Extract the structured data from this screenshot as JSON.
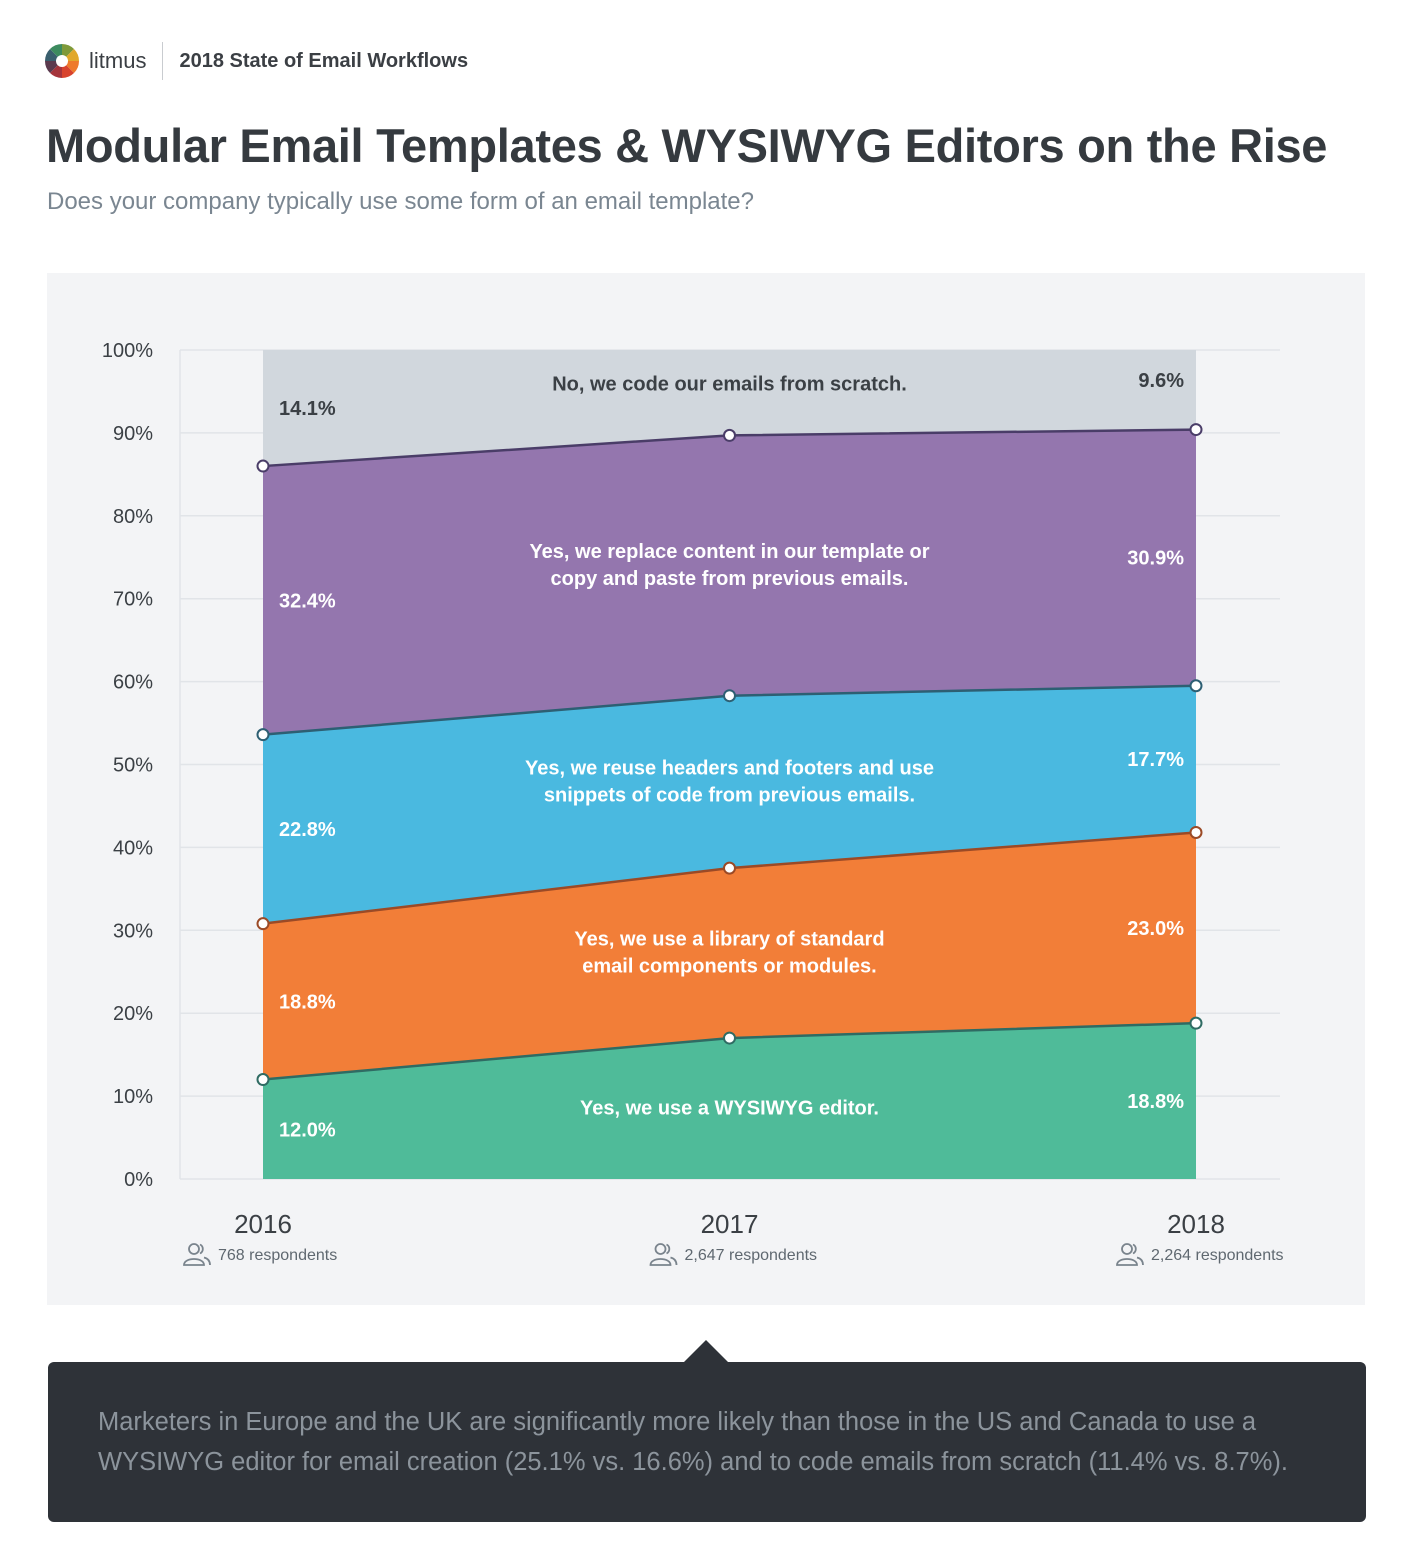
{
  "header": {
    "brand_name": "litmus",
    "report_name": "2018 State of Email Workflows",
    "title": "Modular Email Templates & WYSIWYG Editors on the Rise",
    "subtitle": "Does your company typically use some form of an email template?"
  },
  "chart_data": {
    "type": "area",
    "stacked": true,
    "ylim": [
      0,
      100
    ],
    "yticks": [
      "0%",
      "10%",
      "20%",
      "30%",
      "40%",
      "50%",
      "60%",
      "70%",
      "80%",
      "90%",
      "100%"
    ],
    "grid": true,
    "x": [
      "2016",
      "2017",
      "2018"
    ],
    "respondents": [
      "768 respondents",
      "2,647 respondents",
      "2,264 respondents"
    ],
    "series": [
      {
        "name": "Yes, we use a WYSIWYG editor.",
        "label_lines": [
          "Yes, we use a WYSIWYG editor."
        ],
        "values": [
          12.0,
          17.0,
          18.8
        ],
        "start_label": "12.0%",
        "end_label": "18.8%",
        "color": "#4fbb99",
        "line_color": "#2f6b63"
      },
      {
        "name": "Yes, we use a library of standard email components or modules.",
        "label_lines": [
          "Yes, we use a library of standard",
          "email components or modules."
        ],
        "values": [
          18.8,
          20.5,
          23.0
        ],
        "start_label": "18.8%",
        "end_label": "23.0%",
        "color": "#f27e38",
        "line_color": "#9b4a26"
      },
      {
        "name": "Yes, we reuse headers and footers and use snippets of code from previous emails.",
        "label_lines": [
          "Yes, we reuse headers and footers and use",
          "snippets of code from previous emails."
        ],
        "values": [
          22.8,
          20.8,
          17.7
        ],
        "start_label": "22.8%",
        "end_label": "17.7%",
        "color": "#4ab9e0",
        "line_color": "#2d5f73"
      },
      {
        "name": "Yes, we replace content in our template or copy and paste from previous emails.",
        "label_lines": [
          "Yes, we replace content in our template or",
          "copy and paste from previous emails."
        ],
        "values": [
          32.4,
          31.4,
          30.9
        ],
        "start_label": "32.4%",
        "end_label": "30.9%",
        "color": "#9476ae",
        "line_color": "#4a3d68"
      },
      {
        "name": "No, we code our emails from scratch.",
        "label_lines": [
          "No, we code our emails from scratch."
        ],
        "values": [
          14.1,
          10.3,
          9.6
        ],
        "start_label": "14.1%",
        "end_label": "9.6%",
        "color": "#d1d7dd",
        "line_color": "#4a3d68"
      }
    ]
  },
  "callout": {
    "text": "Marketers in Europe and the UK are significantly more likely than those in the US and Canada to use a WYSIWYG editor for email creation (25.1% vs. 16.6%) and to code emails from scratch (11.4% vs. 8.7%)."
  }
}
